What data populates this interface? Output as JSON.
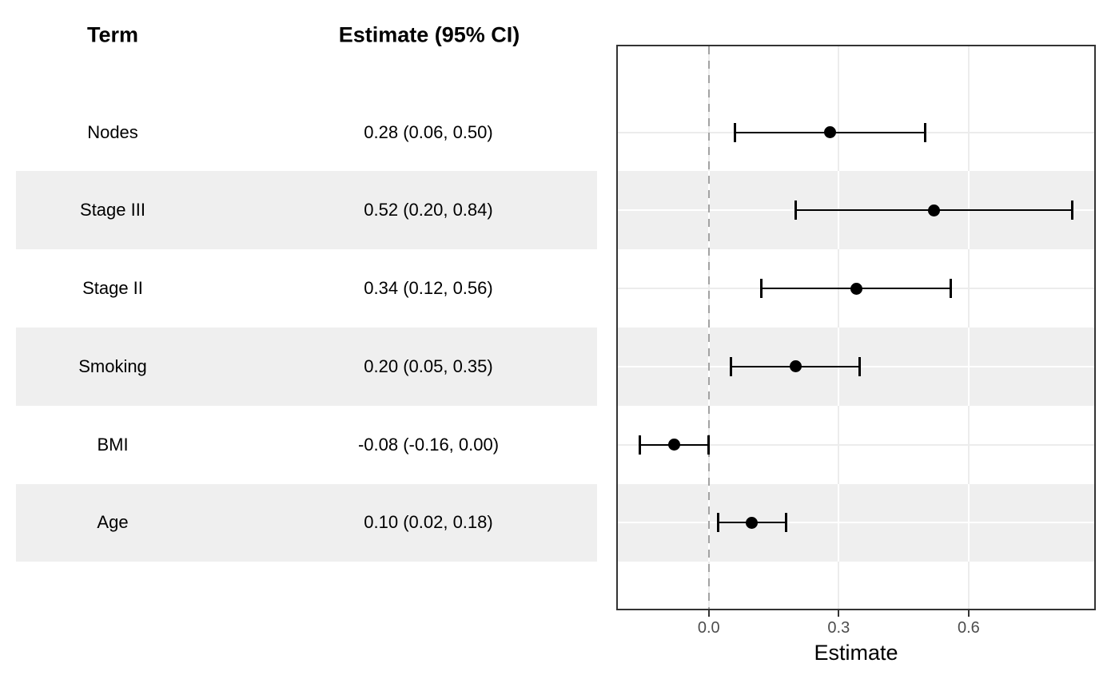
{
  "table": {
    "header_term": "Term",
    "header_estimate": "Estimate (95% CI)"
  },
  "chart_data": {
    "type": "forest",
    "orientation": "horizontal",
    "title": "",
    "xlabel": "Estimate",
    "xlim": [
      -0.21,
      0.89
    ],
    "x_ticks": [
      0.0,
      0.3,
      0.6
    ],
    "x_tick_labels": [
      "0.0",
      "0.3",
      "0.6"
    ],
    "reference_line": 0,
    "grid": "major-only",
    "rows": [
      {
        "term": "Nodes",
        "estimate": 0.28,
        "ci_low": 0.06,
        "ci_high": 0.5,
        "label": "0.28 (0.06, 0.50)",
        "striped": false
      },
      {
        "term": "Stage III",
        "estimate": 0.52,
        "ci_low": 0.2,
        "ci_high": 0.84,
        "label": "0.52 (0.20, 0.84)",
        "striped": true
      },
      {
        "term": "Stage II",
        "estimate": 0.34,
        "ci_low": 0.12,
        "ci_high": 0.56,
        "label": "0.34 (0.12, 0.56)",
        "striped": false
      },
      {
        "term": "Smoking",
        "estimate": 0.2,
        "ci_low": 0.05,
        "ci_high": 0.35,
        "label": "0.20 (0.05, 0.35)",
        "striped": true
      },
      {
        "term": "BMI",
        "estimate": -0.08,
        "ci_low": -0.16,
        "ci_high": 0.0,
        "label": "-0.08 (-0.16, 0.00)",
        "striped": false
      },
      {
        "term": "Age",
        "estimate": 0.1,
        "ci_low": 0.02,
        "ci_high": 0.18,
        "label": "0.10 (0.02, 0.18)",
        "striped": true
      }
    ],
    "colors": {
      "stripe": "#efefef",
      "grid": "#ececec",
      "grid_on_stripe": "#ffffff",
      "panel_border": "#333333",
      "reference_line": "#a3a3a3",
      "point": "#000000",
      "ci": "#000000",
      "tick_label": "#4d4d4d",
      "text": "#000000"
    }
  }
}
